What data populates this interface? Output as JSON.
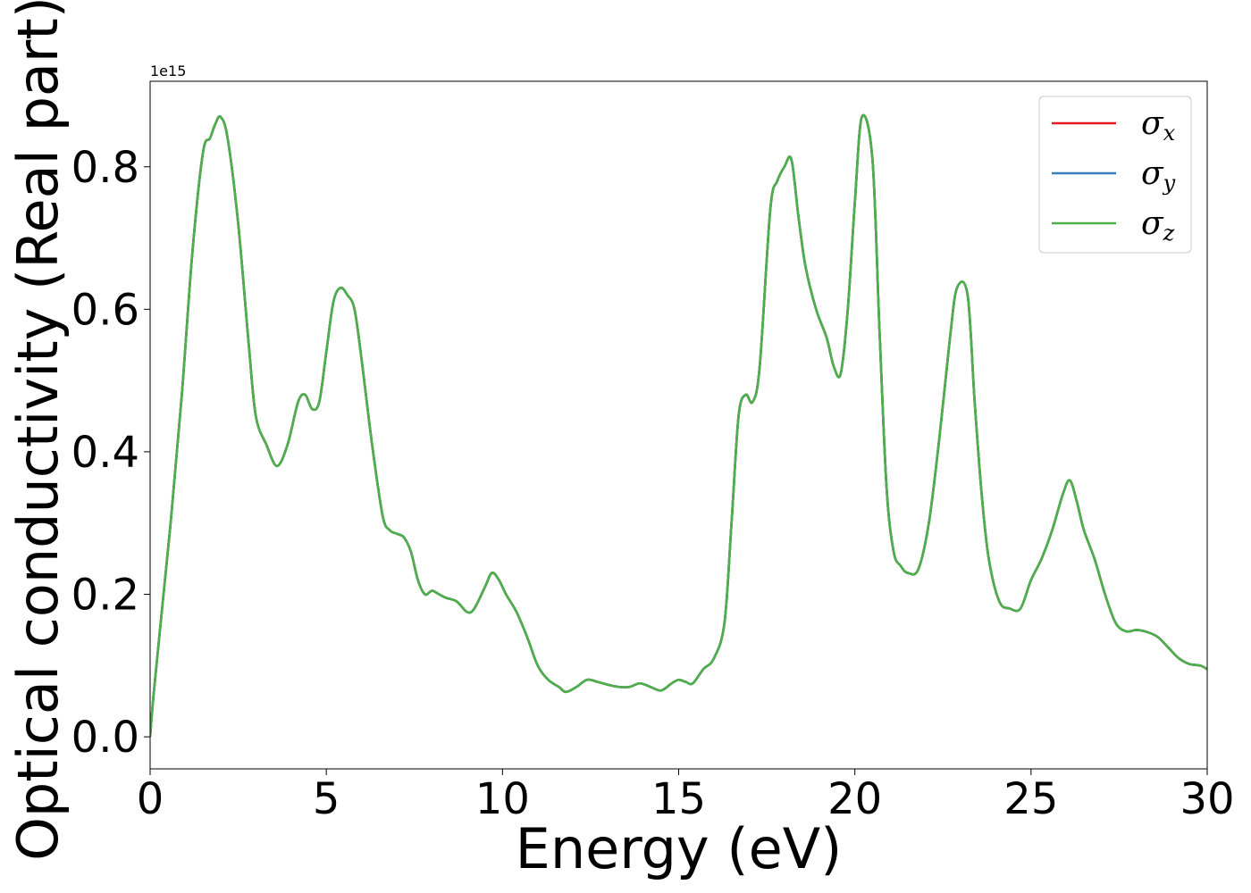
{
  "chart_data": {
    "type": "line",
    "title": "",
    "xlabel": "Energy (eV)",
    "ylabel": "Optical conductivity (Real part)",
    "y_offset_label": "1e15",
    "xlim": [
      0,
      30
    ],
    "ylim": [
      -0.045,
      0.92
    ],
    "xticks": [
      0,
      5,
      10,
      15,
      20,
      25,
      30
    ],
    "xtick_labels": [
      "0",
      "5",
      "10",
      "15",
      "20",
      "25",
      "30"
    ],
    "yticks": [
      0.0,
      0.2,
      0.4,
      0.6,
      0.8
    ],
    "ytick_labels": [
      "0.0",
      "0.2",
      "0.4",
      "0.6",
      "0.8"
    ],
    "grid": false,
    "legend_position": "top-right",
    "x": [
      0,
      0.1,
      0.3,
      0.6,
      0.9,
      1.2,
      1.5,
      1.7,
      1.85,
      2.0,
      2.2,
      2.5,
      2.8,
      3.0,
      3.3,
      3.6,
      3.9,
      4.2,
      4.4,
      4.6,
      4.8,
      5.0,
      5.2,
      5.4,
      5.6,
      5.8,
      6.0,
      6.3,
      6.6,
      6.8,
      7.0,
      7.2,
      7.4,
      7.6,
      7.8,
      8.0,
      8.2,
      8.4,
      8.7,
      9.0,
      9.2,
      9.5,
      9.7,
      9.9,
      10.1,
      10.4,
      10.7,
      11.0,
      11.3,
      11.6,
      11.8,
      12.1,
      12.4,
      12.7,
      13.0,
      13.3,
      13.6,
      13.9,
      14.2,
      14.5,
      14.8,
      15.0,
      15.2,
      15.4,
      15.7,
      16.0,
      16.3,
      16.5,
      16.7,
      16.9,
      17.1,
      17.3,
      17.6,
      17.8,
      18.0,
      18.2,
      18.4,
      18.6,
      18.9,
      19.2,
      19.4,
      19.6,
      19.8,
      20.0,
      20.2,
      20.5,
      20.7,
      20.9,
      21.1,
      21.3,
      21.5,
      21.8,
      22.1,
      22.4,
      22.7,
      22.9,
      23.2,
      23.4,
      23.6,
      23.8,
      24.1,
      24.4,
      24.7,
      25.0,
      25.3,
      25.6,
      25.9,
      26.1,
      26.3,
      26.5,
      26.8,
      27.1,
      27.4,
      27.7,
      28.0,
      28.3,
      28.6,
      28.9,
      29.2,
      29.5,
      29.8,
      30.0
    ],
    "series": [
      {
        "name": "σx",
        "symbol": "σ",
        "subscript": "x",
        "color": "#e41a1c",
        "values": [
          0.0,
          0.06,
          0.16,
          0.31,
          0.48,
          0.68,
          0.82,
          0.84,
          0.86,
          0.87,
          0.84,
          0.72,
          0.55,
          0.45,
          0.41,
          0.38,
          0.41,
          0.47,
          0.48,
          0.46,
          0.47,
          0.54,
          0.61,
          0.63,
          0.62,
          0.6,
          0.53,
          0.41,
          0.31,
          0.29,
          0.285,
          0.28,
          0.26,
          0.22,
          0.2,
          0.205,
          0.2,
          0.195,
          0.19,
          0.175,
          0.18,
          0.21,
          0.23,
          0.22,
          0.2,
          0.175,
          0.14,
          0.1,
          0.08,
          0.07,
          0.063,
          0.07,
          0.08,
          0.077,
          0.073,
          0.07,
          0.07,
          0.075,
          0.07,
          0.065,
          0.075,
          0.08,
          0.077,
          0.075,
          0.095,
          0.11,
          0.16,
          0.3,
          0.45,
          0.48,
          0.47,
          0.52,
          0.74,
          0.78,
          0.8,
          0.81,
          0.73,
          0.66,
          0.6,
          0.56,
          0.52,
          0.51,
          0.6,
          0.75,
          0.87,
          0.81,
          0.57,
          0.35,
          0.26,
          0.24,
          0.23,
          0.235,
          0.3,
          0.42,
          0.56,
          0.63,
          0.62,
          0.47,
          0.34,
          0.25,
          0.19,
          0.18,
          0.18,
          0.22,
          0.25,
          0.29,
          0.34,
          0.36,
          0.33,
          0.29,
          0.25,
          0.2,
          0.16,
          0.148,
          0.15,
          0.147,
          0.14,
          0.125,
          0.11,
          0.102,
          0.1,
          0.095
        ]
      },
      {
        "name": "σy",
        "symbol": "σ",
        "subscript": "y",
        "color": "#377eb8",
        "values": [
          0.0,
          0.06,
          0.16,
          0.31,
          0.48,
          0.68,
          0.82,
          0.84,
          0.86,
          0.87,
          0.84,
          0.72,
          0.55,
          0.45,
          0.41,
          0.38,
          0.41,
          0.47,
          0.48,
          0.46,
          0.47,
          0.54,
          0.61,
          0.63,
          0.62,
          0.6,
          0.53,
          0.41,
          0.31,
          0.29,
          0.285,
          0.28,
          0.26,
          0.22,
          0.2,
          0.205,
          0.2,
          0.195,
          0.19,
          0.175,
          0.18,
          0.21,
          0.23,
          0.22,
          0.2,
          0.175,
          0.14,
          0.1,
          0.08,
          0.07,
          0.063,
          0.07,
          0.08,
          0.077,
          0.073,
          0.07,
          0.07,
          0.075,
          0.07,
          0.065,
          0.075,
          0.08,
          0.077,
          0.075,
          0.095,
          0.11,
          0.16,
          0.3,
          0.45,
          0.48,
          0.47,
          0.52,
          0.74,
          0.78,
          0.8,
          0.81,
          0.73,
          0.66,
          0.6,
          0.56,
          0.52,
          0.51,
          0.6,
          0.75,
          0.87,
          0.81,
          0.57,
          0.35,
          0.26,
          0.24,
          0.23,
          0.235,
          0.3,
          0.42,
          0.56,
          0.63,
          0.62,
          0.47,
          0.34,
          0.25,
          0.19,
          0.18,
          0.18,
          0.22,
          0.25,
          0.29,
          0.34,
          0.36,
          0.33,
          0.29,
          0.25,
          0.2,
          0.16,
          0.148,
          0.15,
          0.147,
          0.14,
          0.125,
          0.11,
          0.102,
          0.1,
          0.095
        ]
      },
      {
        "name": "σz",
        "symbol": "σ",
        "subscript": "z",
        "color": "#4daf4a",
        "values": [
          0.0,
          0.06,
          0.16,
          0.31,
          0.48,
          0.68,
          0.82,
          0.84,
          0.86,
          0.87,
          0.84,
          0.72,
          0.55,
          0.45,
          0.41,
          0.38,
          0.41,
          0.47,
          0.48,
          0.46,
          0.47,
          0.54,
          0.61,
          0.63,
          0.62,
          0.6,
          0.53,
          0.41,
          0.31,
          0.29,
          0.285,
          0.28,
          0.26,
          0.22,
          0.2,
          0.205,
          0.2,
          0.195,
          0.19,
          0.175,
          0.18,
          0.21,
          0.23,
          0.22,
          0.2,
          0.175,
          0.14,
          0.1,
          0.08,
          0.07,
          0.063,
          0.07,
          0.08,
          0.077,
          0.073,
          0.07,
          0.07,
          0.075,
          0.07,
          0.065,
          0.075,
          0.08,
          0.077,
          0.075,
          0.095,
          0.11,
          0.16,
          0.3,
          0.45,
          0.48,
          0.47,
          0.52,
          0.74,
          0.78,
          0.8,
          0.81,
          0.73,
          0.66,
          0.6,
          0.56,
          0.52,
          0.51,
          0.6,
          0.75,
          0.87,
          0.81,
          0.57,
          0.35,
          0.26,
          0.24,
          0.23,
          0.235,
          0.3,
          0.42,
          0.56,
          0.63,
          0.62,
          0.47,
          0.34,
          0.25,
          0.19,
          0.18,
          0.18,
          0.22,
          0.25,
          0.29,
          0.34,
          0.36,
          0.33,
          0.29,
          0.25,
          0.2,
          0.16,
          0.148,
          0.15,
          0.147,
          0.14,
          0.125,
          0.11,
          0.102,
          0.1,
          0.095
        ]
      }
    ]
  }
}
